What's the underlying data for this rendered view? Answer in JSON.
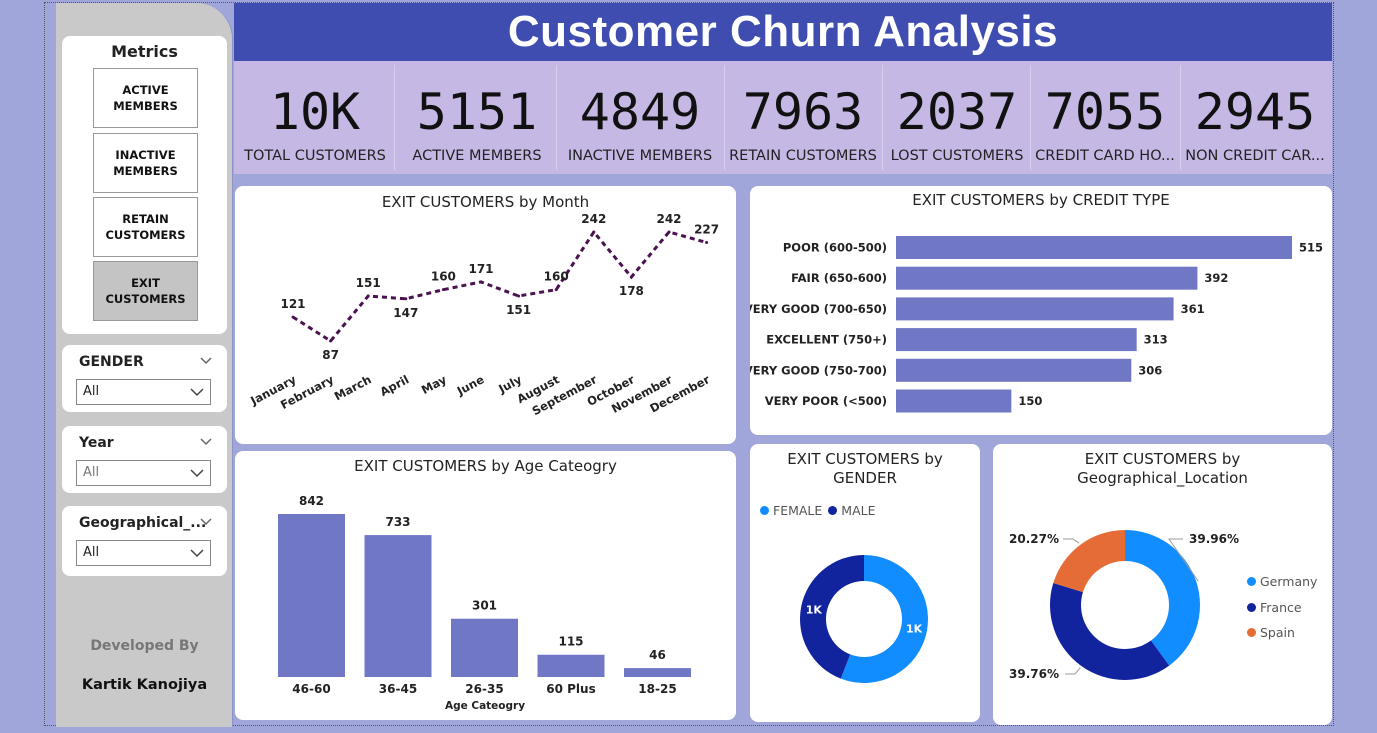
{
  "title": "Customer Churn Analysis",
  "metrics": {
    "title": "Metrics",
    "buttons": [
      "ACTIVE\nMEMBERS",
      "INACTIVE\nMEMBERS",
      "RETAIN\nCUSTOMERS",
      "EXIT\nCUSTOMERS"
    ],
    "selected": 3
  },
  "slicers": [
    {
      "title": "GENDER",
      "value": "All"
    },
    {
      "title": "Year",
      "value": "All"
    },
    {
      "title": "Geographical_...",
      "value": "All"
    }
  ],
  "developer": {
    "label": "Developed By",
    "name": "Kartik Kanojiya"
  },
  "kpis": [
    {
      "value": "10K",
      "label": "TOTAL CUSTOMERS"
    },
    {
      "value": "5151",
      "label": "ACTIVE MEMBERS"
    },
    {
      "value": "4849",
      "label": "INACTIVE MEMBERS"
    },
    {
      "value": "7963",
      "label": "RETAIN CUSTOMERS"
    },
    {
      "value": "2037",
      "label": "LOST CUSTOMERS"
    },
    {
      "value": "7055",
      "label": "CREDIT CARD HO..."
    },
    {
      "value": "2945",
      "label": "NON CREDIT CAR..."
    }
  ],
  "colors": {
    "header": "#3f4db0",
    "kpi_strip": "#c6b8e5",
    "bar": "#7077c4",
    "line": "#4b1250",
    "female": "#118dff",
    "male": "#12239e",
    "spain": "#e66c37"
  },
  "chart_data": [
    {
      "type": "line",
      "title": "EXIT CUSTOMERS by Month",
      "categories": [
        "January",
        "February",
        "March",
        "April",
        "May",
        "June",
        "July",
        "August",
        "September",
        "October",
        "November",
        "December"
      ],
      "values": [
        121,
        87,
        151,
        147,
        160,
        171,
        151,
        160,
        242,
        178,
        242,
        227
      ],
      "line_style": "dashed"
    },
    {
      "type": "bar",
      "orientation": "horizontal",
      "title": "EXIT CUSTOMERS by CREDIT TYPE",
      "categories": [
        "POOR (600-500)",
        "FAIR (650-600)",
        "VERY GOOD (700-650)",
        "EXCELLENT (750+)",
        "VERY GOOD (750-700)",
        "VERY POOR (<500)"
      ],
      "values": [
        515,
        392,
        361,
        313,
        306,
        150
      ]
    },
    {
      "type": "bar",
      "title": "EXIT CUSTOMERS by Age Cateogry",
      "xlabel": "Age Cateogry",
      "categories": [
        "46-60",
        "36-45",
        "26-35",
        "60 Plus",
        "18-25"
      ],
      "values": [
        842,
        733,
        301,
        115,
        46
      ]
    },
    {
      "type": "pie",
      "donut": true,
      "title": "EXIT CUSTOMERS by GENDER",
      "categories": [
        "FEMALE",
        "MALE"
      ],
      "values": [
        1139,
        898
      ],
      "labels": [
        "1K",
        "1K"
      ],
      "legend": "top-left"
    },
    {
      "type": "pie",
      "donut": true,
      "title": "EXIT CUSTOMERS by Geographical_Location",
      "categories": [
        "Germany",
        "France",
        "Spain"
      ],
      "values": [
        39.96,
        39.76,
        20.27
      ],
      "labels": [
        "39.96%",
        "39.76%",
        "20.27%"
      ],
      "legend": "right"
    }
  ]
}
